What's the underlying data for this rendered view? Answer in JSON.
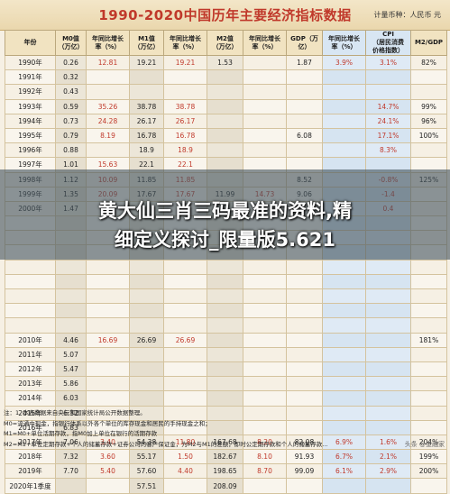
{
  "header": {
    "title": "1990-2020中国历年主要经济指标数据",
    "unit": "计量币种：人民币 元"
  },
  "table": {
    "columns": [
      "年份",
      "M0值\n（万亿）",
      "年同比增长\n率（%）",
      "M1值\n（万亿）",
      "年同比增长\n率（%）",
      "M2值\n（万亿）",
      "年同比增长\n率（%）",
      "GDP（万亿）",
      "年同比增长\n率（%）",
      "CPI\n（居民消费\n价格指数）",
      "M2/GDP"
    ],
    "rows": [
      [
        "1990年",
        "0.26",
        "12.81",
        "19.21",
        "19.21",
        "1.53",
        "",
        "1.87",
        "3.9%",
        "3.1%",
        "82%"
      ],
      [
        "1991年",
        "0.32",
        "",
        "",
        "",
        "",
        "",
        "",
        "",
        "",
        ""
      ],
      [
        "1992年",
        "0.43",
        "",
        "",
        "",
        "",
        "",
        "",
        "",
        "",
        ""
      ],
      [
        "1993年",
        "0.59",
        "35.26",
        "38.78",
        "38.78",
        "",
        "",
        "",
        "",
        "14.7%",
        "99%"
      ],
      [
        "1994年",
        "0.73",
        "24.28",
        "26.17",
        "26.17",
        "",
        "",
        "",
        "",
        "24.1%",
        "96%"
      ],
      [
        "1995年",
        "0.79",
        "8.19",
        "16.78",
        "16.78",
        "",
        "",
        "6.08",
        "",
        "17.1%",
        "100%"
      ],
      [
        "1996年",
        "0.88",
        "",
        "18.9",
        "18.9",
        "",
        "",
        "",
        "",
        "8.3%",
        ""
      ],
      [
        "1997年",
        "1.01",
        "15.63",
        "22.1",
        "22.1",
        "",
        "",
        "",
        "",
        "",
        ""
      ],
      [
        "1998年",
        "1.12",
        "10.09",
        "11.85",
        "11.85",
        "",
        "",
        "8.52",
        "",
        "-0.8%",
        "125%"
      ],
      [
        "1999年",
        "1.35",
        "20.09",
        "17.67",
        "17.67",
        "11.99",
        "14.73",
        "9.06",
        "",
        "-1.4",
        ""
      ],
      [
        "2000年",
        "1.47",
        "",
        "",
        "",
        "",
        "",
        "",
        "",
        "0.4",
        ""
      ],
      [
        "",
        "",
        "",
        "",
        "",
        "",
        "",
        "",
        "",
        "",
        ""
      ],
      [
        "",
        "",
        "",
        "",
        "",
        "",
        "",
        "",
        "",
        "",
        ""
      ],
      [
        "",
        "",
        "",
        "",
        "",
        "",
        "",
        "",
        "",
        "",
        ""
      ],
      [
        "",
        "",
        "",
        "",
        "",
        "",
        "",
        "",
        "",
        "",
        ""
      ],
      [
        "",
        "",
        "",
        "",
        "",
        "",
        "",
        "",
        "",
        "",
        ""
      ],
      [
        "",
        "",
        "",
        "",
        "",
        "",
        "",
        "",
        "",
        "",
        ""
      ],
      [
        "",
        "",
        "",
        "",
        "",
        "",
        "",
        "",
        "",
        "",
        ""
      ],
      [
        "",
        "",
        "",
        "",
        "",
        "",
        "",
        "",
        "",
        "",
        ""
      ],
      [
        "2010年",
        "4.46",
        "16.69",
        "26.69",
        "26.69",
        "",
        "",
        "",
        "",
        "",
        "181%"
      ],
      [
        "2011年",
        "5.07",
        "",
        "",
        "",
        "",
        "",
        "",
        "",
        "",
        ""
      ],
      [
        "2012年",
        "5.47",
        "",
        "",
        "",
        "",
        "",
        "",
        "",
        "",
        ""
      ],
      [
        "2013年",
        "5.86",
        "",
        "",
        "",
        "",
        "",
        "",
        "",
        "",
        ""
      ],
      [
        "2014年",
        "6.03",
        "",
        "",
        "",
        "",
        "",
        "",
        "",
        "",
        ""
      ],
      [
        "2015年",
        "6.32",
        "",
        "",
        "",
        "",
        "",
        "",
        "",
        "",
        ""
      ],
      [
        "2016年",
        "6.83",
        "",
        "",
        "",
        "",
        "",
        "",
        "",
        "",
        ""
      ],
      [
        "2017年",
        "7.06",
        "3.40",
        "54.38",
        "11.80",
        "167.68",
        "8.20",
        "82.08",
        "6.9%",
        "1.6%",
        "204%"
      ],
      [
        "2018年",
        "7.32",
        "3.60",
        "55.17",
        "1.50",
        "182.67",
        "8.10",
        "91.93",
        "6.7%",
        "2.1%",
        "199%"
      ],
      [
        "2019年",
        "7.70",
        "5.40",
        "57.60",
        "4.40",
        "198.65",
        "8.70",
        "99.09",
        "6.1%",
        "2.9%",
        "200%"
      ],
      [
        "2020年1季度",
        "",
        "",
        "57.51",
        "",
        "208.09",
        "",
        "",
        "",
        "",
        ""
      ]
    ]
  },
  "overlay": {
    "line1": "黄大仙三肖三码最准的资料,精",
    "line2": "细定义探讨_限量版5.621"
  },
  "notes": [
    "注：1. 本表数据来自央行和国家统计局公开数据整理。",
    "M0=流通中现金，指银行体系以外各个单位的库存现金和居民的手持现金之和；",
    "M1=M0+单位活期存款，指M0加上单位在银行的活期存款",
    "M2=M1+单位定期存款+个人的储蓄存款+证券公司的客户保证金，为M2与M1的差额，即时公定期存款和个人的储蓄存款..."
  ],
  "watermark": "头条 @金融家"
}
